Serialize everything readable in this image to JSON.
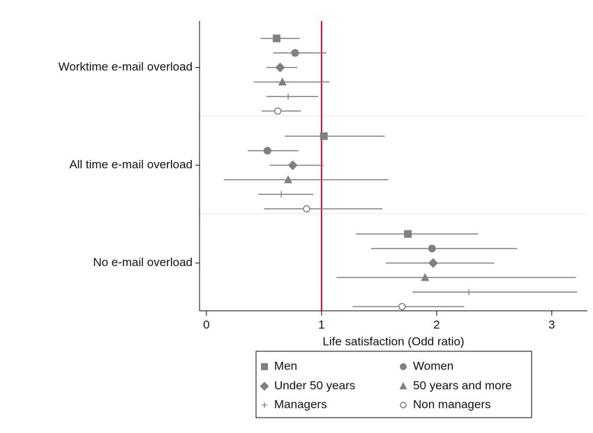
{
  "chart_data": {
    "type": "forest",
    "xlabel": "Life satisfaction (Odd ratio)",
    "categories": [
      "Worktime e-mail overload",
      "All time e-mail overload",
      "No e-mail overload"
    ],
    "xlim": [
      -0.06,
      3.31
    ],
    "xticks": [
      0,
      1,
      2,
      3
    ],
    "reference_line": 1,
    "reference_color": "#c8102e",
    "series": [
      {
        "name": "Men",
        "marker": "square",
        "color": "#808080",
        "values": [
          0.61,
          1.02,
          1.75
        ],
        "lower": [
          0.47,
          0.68,
          1.3
        ],
        "upper": [
          0.81,
          1.55,
          2.36
        ]
      },
      {
        "name": "Women",
        "marker": "circle",
        "color": "#808080",
        "values": [
          0.77,
          0.53,
          1.96
        ],
        "lower": [
          0.58,
          0.36,
          1.43
        ],
        "upper": [
          1.04,
          0.8,
          2.7
        ]
      },
      {
        "name": "Under 50 years",
        "marker": "diamond",
        "color": "#808080",
        "values": [
          0.64,
          0.75,
          1.97
        ],
        "lower": [
          0.52,
          0.55,
          1.56
        ],
        "upper": [
          0.79,
          1.02,
          2.5
        ]
      },
      {
        "name": "50 years and more",
        "marker": "triangle",
        "color": "#808080",
        "values": [
          0.66,
          0.71,
          1.9
        ],
        "lower": [
          0.41,
          0.15,
          1.13
        ],
        "upper": [
          1.07,
          1.58,
          3.21
        ]
      },
      {
        "name": "Managers",
        "marker": "plus",
        "color": "#808080",
        "values": [
          0.71,
          0.65,
          2.28
        ],
        "lower": [
          0.52,
          0.45,
          1.79
        ],
        "upper": [
          0.97,
          0.93,
          3.22
        ]
      },
      {
        "name": "Non managers",
        "marker": "hollow-circle",
        "color": "#808080",
        "values": [
          0.62,
          0.87,
          1.7
        ],
        "lower": [
          0.48,
          0.5,
          1.27
        ],
        "upper": [
          0.82,
          1.53,
          2.24
        ]
      }
    ]
  }
}
